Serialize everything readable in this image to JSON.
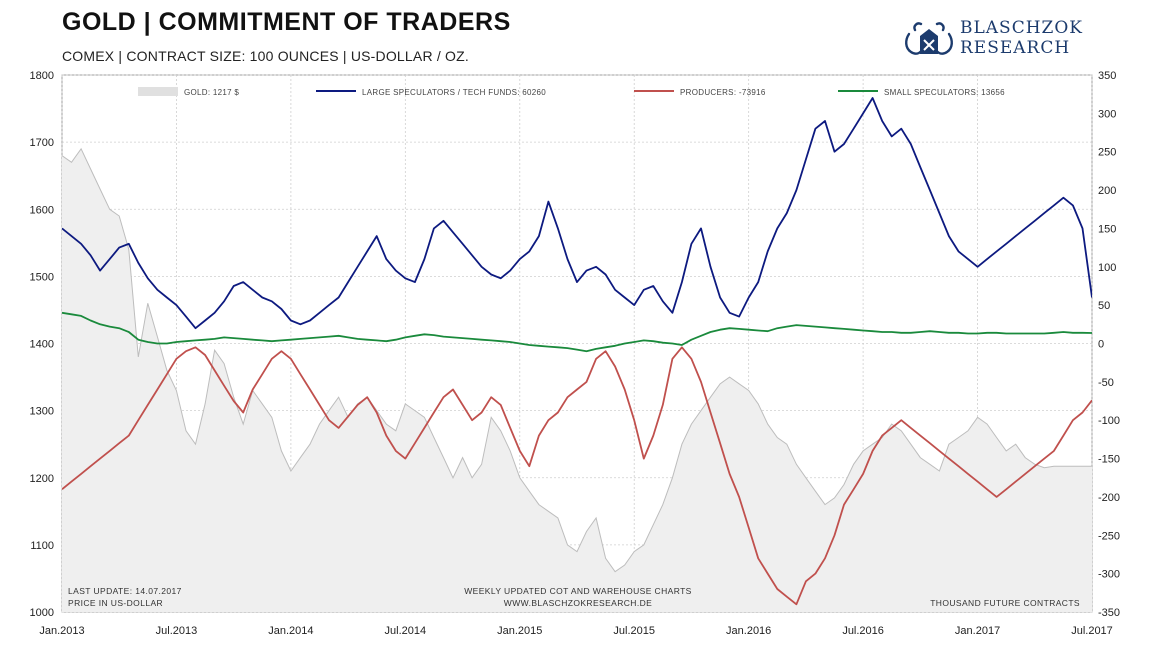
{
  "header": {
    "title": "GOLD | COMMITMENT OF TRADERS",
    "subtitle": "COMEX | CONTRACT SIZE: 100 OUNCES | US-DOLLAR / OZ."
  },
  "logo": {
    "line1": "BLASCHZOK",
    "line2": "RESEARCH",
    "color": "#1c3b6d"
  },
  "footer": {
    "left_line1": "LAST UPDATE: 14.07.2017",
    "left_line2": "PRICE IN US-DOLLAR",
    "center_line1": "WEEKLY UPDATED COT AND WAREHOUSE CHARTS",
    "center_line2": "WWW.BLASCHZOKRESEARCH.DE",
    "right": "THOUSAND FUTURE CONTRACTS"
  },
  "chart_data": {
    "type": "line",
    "x_tick_labels": [
      "Jan.2013",
      "Jul.2013",
      "Jan.2014",
      "Jul.2014",
      "Jan.2015",
      "Jul.2015",
      "Jan.2016",
      "Jul.2016",
      "Jan.2017",
      "Jul.2017"
    ],
    "y_left": {
      "min": 1000,
      "max": 1800,
      "ticks": [
        1000,
        1100,
        1200,
        1300,
        1400,
        1500,
        1600,
        1700,
        1800
      ]
    },
    "y_right": {
      "min": -350,
      "max": 350,
      "ticks": [
        -350,
        -300,
        -250,
        -200,
        -150,
        -100,
        -50,
        0,
        50,
        100,
        150,
        200,
        250,
        300,
        350
      ]
    },
    "grid": true,
    "legend_position": "top",
    "x": [
      0,
      0.5,
      1,
      1.5,
      2,
      2.5,
      3,
      3.5,
      4,
      4.5,
      5,
      5.5,
      6,
      6.5,
      7,
      7.5,
      8,
      8.5,
      9,
      9.5,
      10,
      10.5,
      11,
      11.5,
      12,
      12.5,
      13,
      13.5,
      14,
      14.5,
      15,
      15.5,
      16,
      16.5,
      17,
      17.5,
      18,
      18.5,
      19,
      19.5,
      20,
      20.5,
      21,
      21.5,
      22,
      22.5,
      23,
      23.5,
      24,
      24.5,
      25,
      25.5,
      26,
      26.5,
      27,
      27.5,
      28,
      28.5,
      29,
      29.5,
      30,
      30.5,
      31,
      31.5,
      32,
      32.5,
      33,
      33.5,
      34,
      34.5,
      35,
      35.5,
      36,
      36.5,
      37,
      37.5,
      38,
      38.5,
      39,
      39.5,
      40,
      40.5,
      41,
      41.5,
      42,
      42.5,
      43,
      43.5,
      44,
      44.5,
      45,
      45.5,
      46,
      46.5,
      47,
      47.5,
      48,
      48.5,
      49,
      49.5,
      50,
      50.5,
      51,
      51.5,
      52,
      52.5,
      53,
      53.5,
      54
    ],
    "series": [
      {
        "name": "GOLD: 1217 $",
        "axis": "left",
        "style": "area",
        "color": "#bdbdbd",
        "values": [
          1680,
          1670,
          1690,
          1660,
          1630,
          1600,
          1590,
          1540,
          1380,
          1460,
          1410,
          1360,
          1330,
          1270,
          1250,
          1310,
          1390,
          1370,
          1320,
          1280,
          1330,
          1310,
          1290,
          1240,
          1210,
          1230,
          1250,
          1280,
          1300,
          1320,
          1290,
          1310,
          1320,
          1300,
          1280,
          1270,
          1310,
          1300,
          1290,
          1260,
          1230,
          1200,
          1230,
          1200,
          1220,
          1290,
          1270,
          1240,
          1200,
          1180,
          1160,
          1150,
          1140,
          1100,
          1090,
          1120,
          1140,
          1080,
          1060,
          1070,
          1090,
          1100,
          1130,
          1160,
          1200,
          1250,
          1280,
          1300,
          1320,
          1340,
          1350,
          1340,
          1330,
          1310,
          1280,
          1260,
          1250,
          1220,
          1200,
          1180,
          1160,
          1170,
          1190,
          1220,
          1240,
          1250,
          1260,
          1280,
          1270,
          1250,
          1230,
          1220,
          1210,
          1250,
          1260,
          1270,
          1290,
          1280,
          1260,
          1240,
          1250,
          1230,
          1220,
          1215,
          1217,
          1217,
          1217,
          1217,
          1217
        ]
      },
      {
        "name": "LARGE SPECULATORS / TECH FUNDS: 60260",
        "axis": "right",
        "style": "line",
        "color": "#0d1a80",
        "values": [
          150,
          140,
          130,
          115,
          95,
          110,
          125,
          130,
          105,
          85,
          70,
          60,
          50,
          35,
          20,
          30,
          40,
          55,
          75,
          80,
          70,
          60,
          55,
          45,
          30,
          25,
          30,
          40,
          50,
          60,
          80,
          100,
          120,
          140,
          110,
          95,
          85,
          80,
          110,
          150,
          160,
          145,
          130,
          115,
          100,
          90,
          85,
          95,
          110,
          120,
          140,
          185,
          150,
          110,
          80,
          95,
          100,
          90,
          70,
          60,
          50,
          70,
          75,
          55,
          40,
          80,
          130,
          150,
          100,
          60,
          40,
          35,
          60,
          80,
          120,
          150,
          170,
          200,
          240,
          280,
          290,
          250,
          260,
          280,
          300,
          320,
          290,
          270,
          280,
          260,
          230,
          200,
          170,
          140,
          120,
          110,
          100,
          110,
          120,
          130,
          140,
          150,
          160,
          170,
          180,
          190,
          180,
          150,
          60
        ]
      },
      {
        "name": "PRODUCERS: -73916",
        "axis": "right",
        "style": "line",
        "color": "#c0504d",
        "values": [
          -190,
          -180,
          -170,
          -160,
          -150,
          -140,
          -130,
          -120,
          -100,
          -80,
          -60,
          -40,
          -20,
          -10,
          -5,
          -15,
          -35,
          -55,
          -75,
          -90,
          -60,
          -40,
          -20,
          -10,
          -20,
          -40,
          -60,
          -80,
          -100,
          -110,
          -95,
          -80,
          -70,
          -90,
          -120,
          -140,
          -150,
          -130,
          -110,
          -90,
          -70,
          -60,
          -80,
          -100,
          -90,
          -70,
          -80,
          -110,
          -140,
          -160,
          -120,
          -100,
          -90,
          -70,
          -60,
          -50,
          -20,
          -10,
          -30,
          -60,
          -100,
          -150,
          -120,
          -80,
          -20,
          -5,
          -20,
          -50,
          -90,
          -130,
          -170,
          -200,
          -240,
          -280,
          -300,
          -320,
          -330,
          -340,
          -310,
          -300,
          -280,
          -250,
          -210,
          -190,
          -170,
          -140,
          -120,
          -110,
          -100,
          -110,
          -120,
          -130,
          -140,
          -150,
          -160,
          -170,
          -180,
          -190,
          -200,
          -190,
          -180,
          -170,
          -160,
          -150,
          -140,
          -120,
          -100,
          -90,
          -74
        ]
      },
      {
        "name": "SMALL SPECULATORS: 13656",
        "axis": "right",
        "style": "line",
        "color": "#1a8a3c",
        "values": [
          40,
          38,
          36,
          30,
          25,
          22,
          20,
          15,
          5,
          2,
          0,
          0,
          2,
          3,
          4,
          5,
          6,
          8,
          7,
          6,
          5,
          4,
          3,
          4,
          5,
          6,
          7,
          8,
          9,
          10,
          8,
          6,
          5,
          4,
          3,
          5,
          8,
          10,
          12,
          11,
          9,
          8,
          7,
          6,
          5,
          4,
          3,
          2,
          0,
          -2,
          -3,
          -4,
          -5,
          -6,
          -8,
          -10,
          -7,
          -5,
          -3,
          0,
          2,
          4,
          3,
          1,
          0,
          -2,
          5,
          10,
          15,
          18,
          20,
          19,
          18,
          17,
          16,
          20,
          22,
          24,
          23,
          22,
          21,
          20,
          19,
          18,
          17,
          16,
          15,
          15,
          14,
          14,
          15,
          16,
          15,
          14,
          14,
          13,
          13,
          14,
          14,
          13,
          13,
          13,
          13,
          13,
          14,
          15,
          14,
          14,
          13.7
        ]
      }
    ],
    "legend": [
      "GOLD: 1217 $",
      "LARGE SPECULATORS / TECH FUNDS: 60260",
      "PRODUCERS: -73916",
      "SMALL SPECULATORS: 13656"
    ]
  }
}
